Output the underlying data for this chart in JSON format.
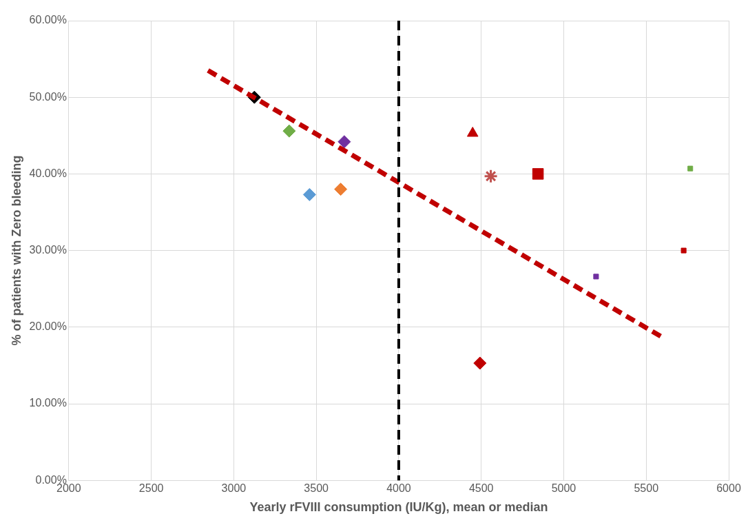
{
  "chart_data": {
    "type": "scatter",
    "xlabel": "Yearly rFVIII consumption (IU/Kg), mean or median",
    "ylabel": "% of patients with Zero bleeding",
    "xlim": [
      2000,
      6000
    ],
    "xticks": [
      2000,
      2500,
      3000,
      3500,
      4000,
      4500,
      5000,
      5500,
      6000
    ],
    "ylim": [
      0,
      60
    ],
    "yticks": [
      {
        "value": 0,
        "label": "0.00%"
      },
      {
        "value": 10,
        "label": "10.00%"
      },
      {
        "value": 20,
        "label": "20.00%"
      },
      {
        "value": 30,
        "label": "30.00%"
      },
      {
        "value": 40,
        "label": "40.00%"
      },
      {
        "value": 50,
        "label": "50.00%"
      },
      {
        "value": 60,
        "label": "60.00%"
      }
    ],
    "grid": true,
    "legend": false,
    "series": [
      {
        "color": "#000000",
        "marker": "diamond",
        "x": [
          3125
        ],
        "values": [
          50.0
        ]
      },
      {
        "color": "#70ad47",
        "marker": "diamond",
        "x": [
          3336
        ],
        "values": [
          45.6
        ]
      },
      {
        "color": "#7030a0",
        "marker": "diamond",
        "x": [
          3670
        ],
        "values": [
          44.2
        ]
      },
      {
        "color": "#5b9bd5",
        "marker": "diamond",
        "x": [
          3459
        ],
        "values": [
          37.3
        ]
      },
      {
        "color": "#ed7d31",
        "marker": "diamond",
        "x": [
          3648
        ],
        "values": [
          38.0
        ]
      },
      {
        "color": "#c00000",
        "marker": "triangle",
        "x": [
          4448
        ],
        "values": [
          45.3
        ]
      },
      {
        "color": "#c0504d",
        "marker": "cross",
        "x": [
          4558
        ],
        "values": [
          39.7
        ]
      },
      {
        "color": "#c00000",
        "marker": "square",
        "x": [
          4844
        ],
        "values": [
          40.0
        ]
      },
      {
        "color": "#70ad47",
        "marker": "square",
        "x": [
          5767
        ],
        "values": [
          40.7
        ]
      },
      {
        "color": "#c00000",
        "marker": "square",
        "x": [
          5727
        ],
        "values": [
          30.0
        ]
      },
      {
        "color": "#7030a0",
        "marker": "square",
        "x": [
          5196
        ],
        "values": [
          26.6
        ]
      },
      {
        "color": "#c00000",
        "marker": "diamond",
        "x": [
          4492
        ],
        "values": [
          15.3
        ]
      },
      {
        "type": "line",
        "color": "#c00000",
        "line_style": "dashed",
        "marker": "none",
        "x": [
          2844,
          5604
        ],
        "values": [
          53.5,
          18.6
        ]
      }
    ],
    "ref_lines": [
      {
        "axis": "x",
        "value": 4000,
        "color": "#000000",
        "line_style": "dashed"
      }
    ]
  }
}
